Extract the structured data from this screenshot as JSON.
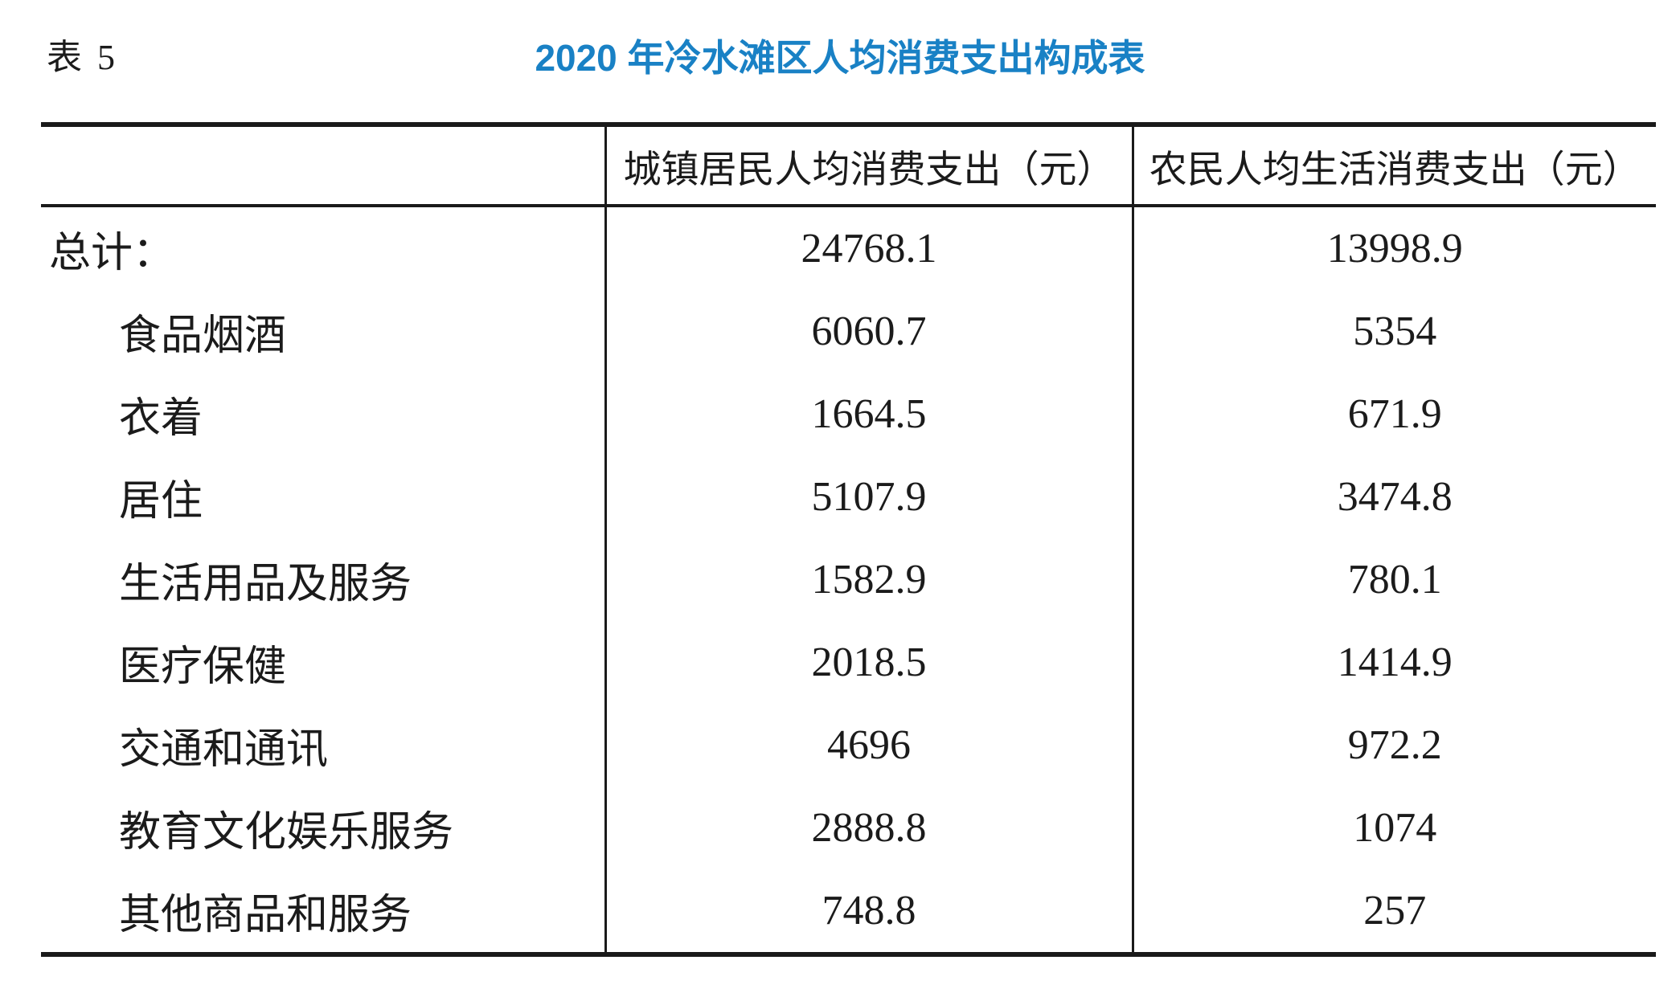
{
  "page": {
    "table_label": "表 5",
    "title": "2020 年冷水滩区人均消费支出构成表",
    "title_color": "#1981c5",
    "text_color": "#1b1b1b",
    "background_color": "#ffffff"
  },
  "table": {
    "headers": [
      "",
      "城镇居民人均消费支出（元）",
      "农民人均生活消费支出（元）"
    ],
    "rows": [
      {
        "label": "总计：",
        "urban": "24768.1",
        "rural": "13998.9"
      },
      {
        "label": "食品烟酒",
        "urban": "6060.7",
        "rural": "5354"
      },
      {
        "label": "衣着",
        "urban": "1664.5",
        "rural": "671.9"
      },
      {
        "label": "居住",
        "urban": "5107.9",
        "rural": "3474.8"
      },
      {
        "label": "生活用品及服务",
        "urban": "1582.9",
        "rural": "780.1"
      },
      {
        "label": "医疗保健",
        "urban": "2018.5",
        "rural": "1414.9"
      },
      {
        "label": "交通和通讯",
        "urban": "4696",
        "rural": "972.2"
      },
      {
        "label": "教育文化娱乐服务",
        "urban": "2888.8",
        "rural": "1074"
      },
      {
        "label": "其他商品和服务",
        "urban": "748.8",
        "rural": "257"
      }
    ]
  }
}
